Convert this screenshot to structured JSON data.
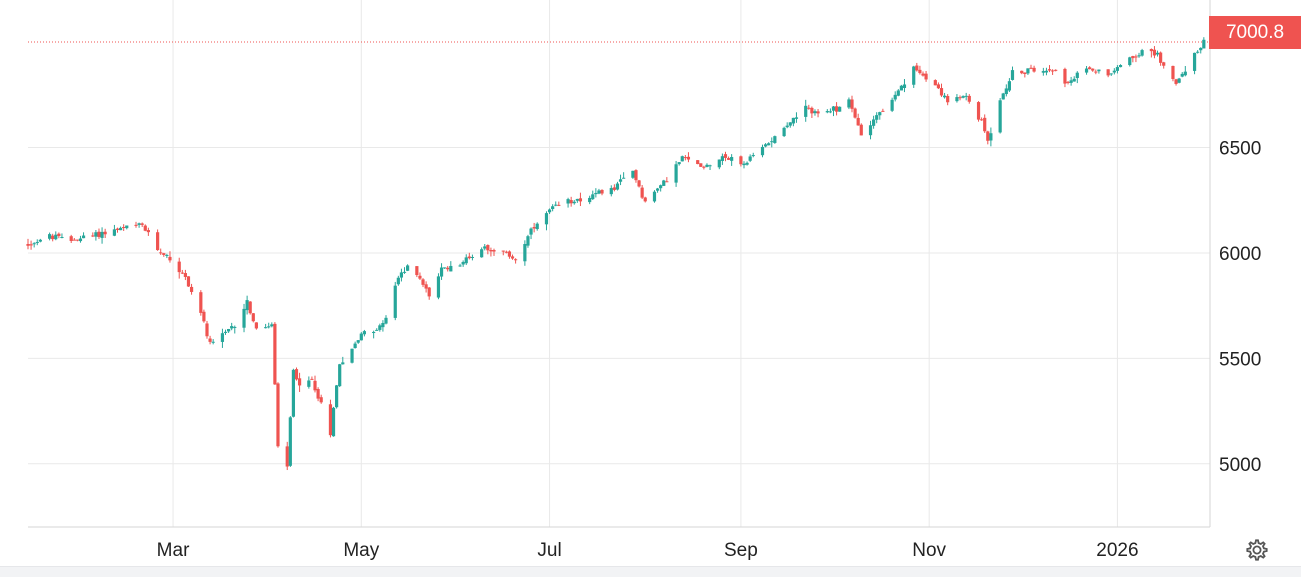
{
  "chart_data": {
    "type": "candlestick",
    "title": "",
    "xlabel": "",
    "ylabel": "",
    "x_range": [
      "2025-01-13",
      "2026-01-31"
    ],
    "ylim": [
      4700,
      7200
    ],
    "y_ticks": [
      5000,
      5500,
      6000,
      6500
    ],
    "x_ticks": [
      {
        "date": "2025-03-01",
        "label": "Mar"
      },
      {
        "date": "2025-05-01",
        "label": "May"
      },
      {
        "date": "2025-07-01",
        "label": "Jul"
      },
      {
        "date": "2025-09-01",
        "label": "Sep"
      },
      {
        "date": "2025-11-01",
        "label": "Nov"
      },
      {
        "date": "2026-01-01",
        "label": "2026"
      }
    ],
    "last_price": "7000.8",
    "grid": true,
    "colors": {
      "up": "#26a69a",
      "down": "#ef5350",
      "grid": "#e9e9e9",
      "last_line": "#ef5350"
    },
    "close_path": [
      [
        "2025-01-13",
        6040
      ],
      [
        "2025-01-20",
        6080
      ],
      [
        "2025-01-27",
        6060
      ],
      [
        "2025-02-05",
        6090
      ],
      [
        "2025-02-14",
        6120
      ],
      [
        "2025-02-19",
        6130
      ],
      [
        "2025-02-24",
        6020
      ],
      [
        "2025-03-01",
        5960
      ],
      [
        "2025-03-05",
        5880
      ],
      [
        "2025-03-10",
        5720
      ],
      [
        "2025-03-13",
        5560
      ],
      [
        "2025-03-18",
        5620
      ],
      [
        "2025-03-21",
        5660
      ],
      [
        "2025-03-25",
        5770
      ],
      [
        "2025-03-28",
        5630
      ],
      [
        "2025-04-02",
        5660
      ],
      [
        "2025-04-04",
        5080
      ],
      [
        "2025-04-07",
        4980
      ],
      [
        "2025-04-09",
        5450
      ],
      [
        "2025-04-11",
        5360
      ],
      [
        "2025-04-15",
        5400
      ],
      [
        "2025-04-18",
        5280
      ],
      [
        "2025-04-21",
        5150
      ],
      [
        "2025-04-24",
        5480
      ],
      [
        "2025-04-28",
        5540
      ],
      [
        "2025-05-01",
        5620
      ],
      [
        "2025-05-06",
        5640
      ],
      [
        "2025-05-09",
        5680
      ],
      [
        "2025-05-12",
        5850
      ],
      [
        "2025-05-16",
        5950
      ],
      [
        "2025-05-21",
        5850
      ],
      [
        "2025-05-23",
        5800
      ],
      [
        "2025-05-27",
        5920
      ],
      [
        "2025-06-03",
        5960
      ],
      [
        "2025-06-10",
        6030
      ],
      [
        "2025-06-16",
        6000
      ],
      [
        "2025-06-20",
        5970
      ],
      [
        "2025-06-25",
        6100
      ],
      [
        "2025-07-01",
        6200
      ],
      [
        "2025-07-08",
        6250
      ],
      [
        "2025-07-15",
        6270
      ],
      [
        "2025-07-22",
        6310
      ],
      [
        "2025-07-28",
        6390
      ],
      [
        "2025-08-01",
        6240
      ],
      [
        "2025-08-06",
        6320
      ],
      [
        "2025-08-13",
        6450
      ],
      [
        "2025-08-20",
        6410
      ],
      [
        "2025-08-26",
        6460
      ],
      [
        "2025-09-02",
        6420
      ],
      [
        "2025-09-08",
        6500
      ],
      [
        "2025-09-15",
        6600
      ],
      [
        "2025-09-22",
        6680
      ],
      [
        "2025-09-29",
        6660
      ],
      [
        "2025-10-06",
        6720
      ],
      [
        "2025-10-10",
        6560
      ],
      [
        "2025-10-14",
        6640
      ],
      [
        "2025-10-20",
        6720
      ],
      [
        "2025-10-27",
        6870
      ],
      [
        "2025-10-31",
        6840
      ],
      [
        "2025-11-04",
        6780
      ],
      [
        "2025-11-07",
        6720
      ],
      [
        "2025-11-13",
        6740
      ],
      [
        "2025-11-18",
        6620
      ],
      [
        "2025-11-20",
        6540
      ],
      [
        "2025-11-25",
        6760
      ],
      [
        "2025-11-28",
        6850
      ],
      [
        "2025-12-05",
        6870
      ],
      [
        "2025-12-11",
        6880
      ],
      [
        "2025-12-16",
        6800
      ],
      [
        "2025-12-22",
        6880
      ],
      [
        "2025-12-29",
        6850
      ],
      [
        "2026-01-05",
        6930
      ],
      [
        "2026-01-09",
        6950
      ],
      [
        "2026-01-14",
        6940
      ],
      [
        "2026-01-20",
        6800
      ],
      [
        "2026-01-24",
        6900
      ],
      [
        "2026-01-29",
        7000
      ]
    ]
  },
  "ui": {
    "settings_icon": "gear-icon"
  }
}
